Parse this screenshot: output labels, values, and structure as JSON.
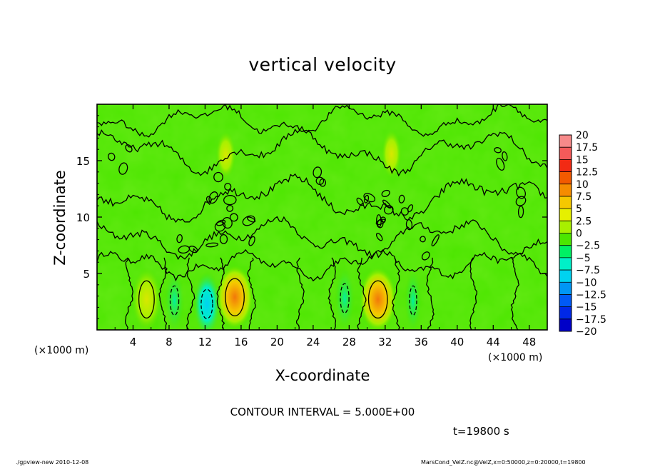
{
  "footer": {
    "left": "./gpview-new   2010-12-08",
    "right": "MarsCond_VelZ.nc@VelZ,x=0:50000,z=0:20000,t=19800"
  },
  "chart_data": {
    "type": "heatmap",
    "title": "vertical velocity",
    "xlabel": "X-coordinate",
    "ylabel": "Z-coordinate",
    "x_scale_note": "(×1000 m)",
    "x_ticks": [
      4,
      8,
      12,
      16,
      20,
      24,
      28,
      32,
      36,
      40,
      44,
      48
    ],
    "y_ticks": [
      5,
      10,
      15
    ],
    "xlim": [
      0,
      50
    ],
    "ylim": [
      0,
      20
    ],
    "contour_interval": "CONTOUR INTERVAL = 5.000E+00",
    "time": "t=19800 s",
    "colorbar": {
      "labels": [
        "20",
        "17.5",
        "15",
        "12.5",
        "10",
        "7.5",
        "5",
        "2.5",
        "0",
        "−2.5",
        "−5",
        "−7.5",
        "−10",
        "−12.5",
        "−15",
        "−17.5",
        "−20"
      ],
      "colors": [
        "#f78a8a",
        "#f55a5a",
        "#f22a14",
        "#f25a00",
        "#f58c00",
        "#f5c800",
        "#e6f000",
        "#a8f000",
        "#4ce600",
        "#00f064",
        "#00f0c8",
        "#00d2f0",
        "#0096f5",
        "#005af5",
        "#0028e6",
        "#0000c8",
        "#7814c8"
      ]
    },
    "features": [
      {
        "x": 5.5,
        "z": 2.7,
        "w": 0.9,
        "value": 7.5
      },
      {
        "x": 15.3,
        "z": 2.9,
        "w": 1.1,
        "value": 11
      },
      {
        "x": 31.2,
        "z": 2.7,
        "w": 1.1,
        "value": 11
      },
      {
        "x": 12.2,
        "z": 2.3,
        "w": 0.8,
        "value": -4.5
      },
      {
        "x": 8.6,
        "z": 2.6,
        "w": 0.6,
        "value": -2.5
      },
      {
        "x": 27.5,
        "z": 2.8,
        "w": 0.6,
        "value": -2.5
      },
      {
        "x": 35.1,
        "z": 2.6,
        "w": 0.5,
        "value": -2
      },
      {
        "x": 14.3,
        "z": 15.5,
        "w": 0.6,
        "value": 3
      },
      {
        "x": 32.7,
        "z": 15.6,
        "w": 0.6,
        "value": 3
      }
    ]
  }
}
